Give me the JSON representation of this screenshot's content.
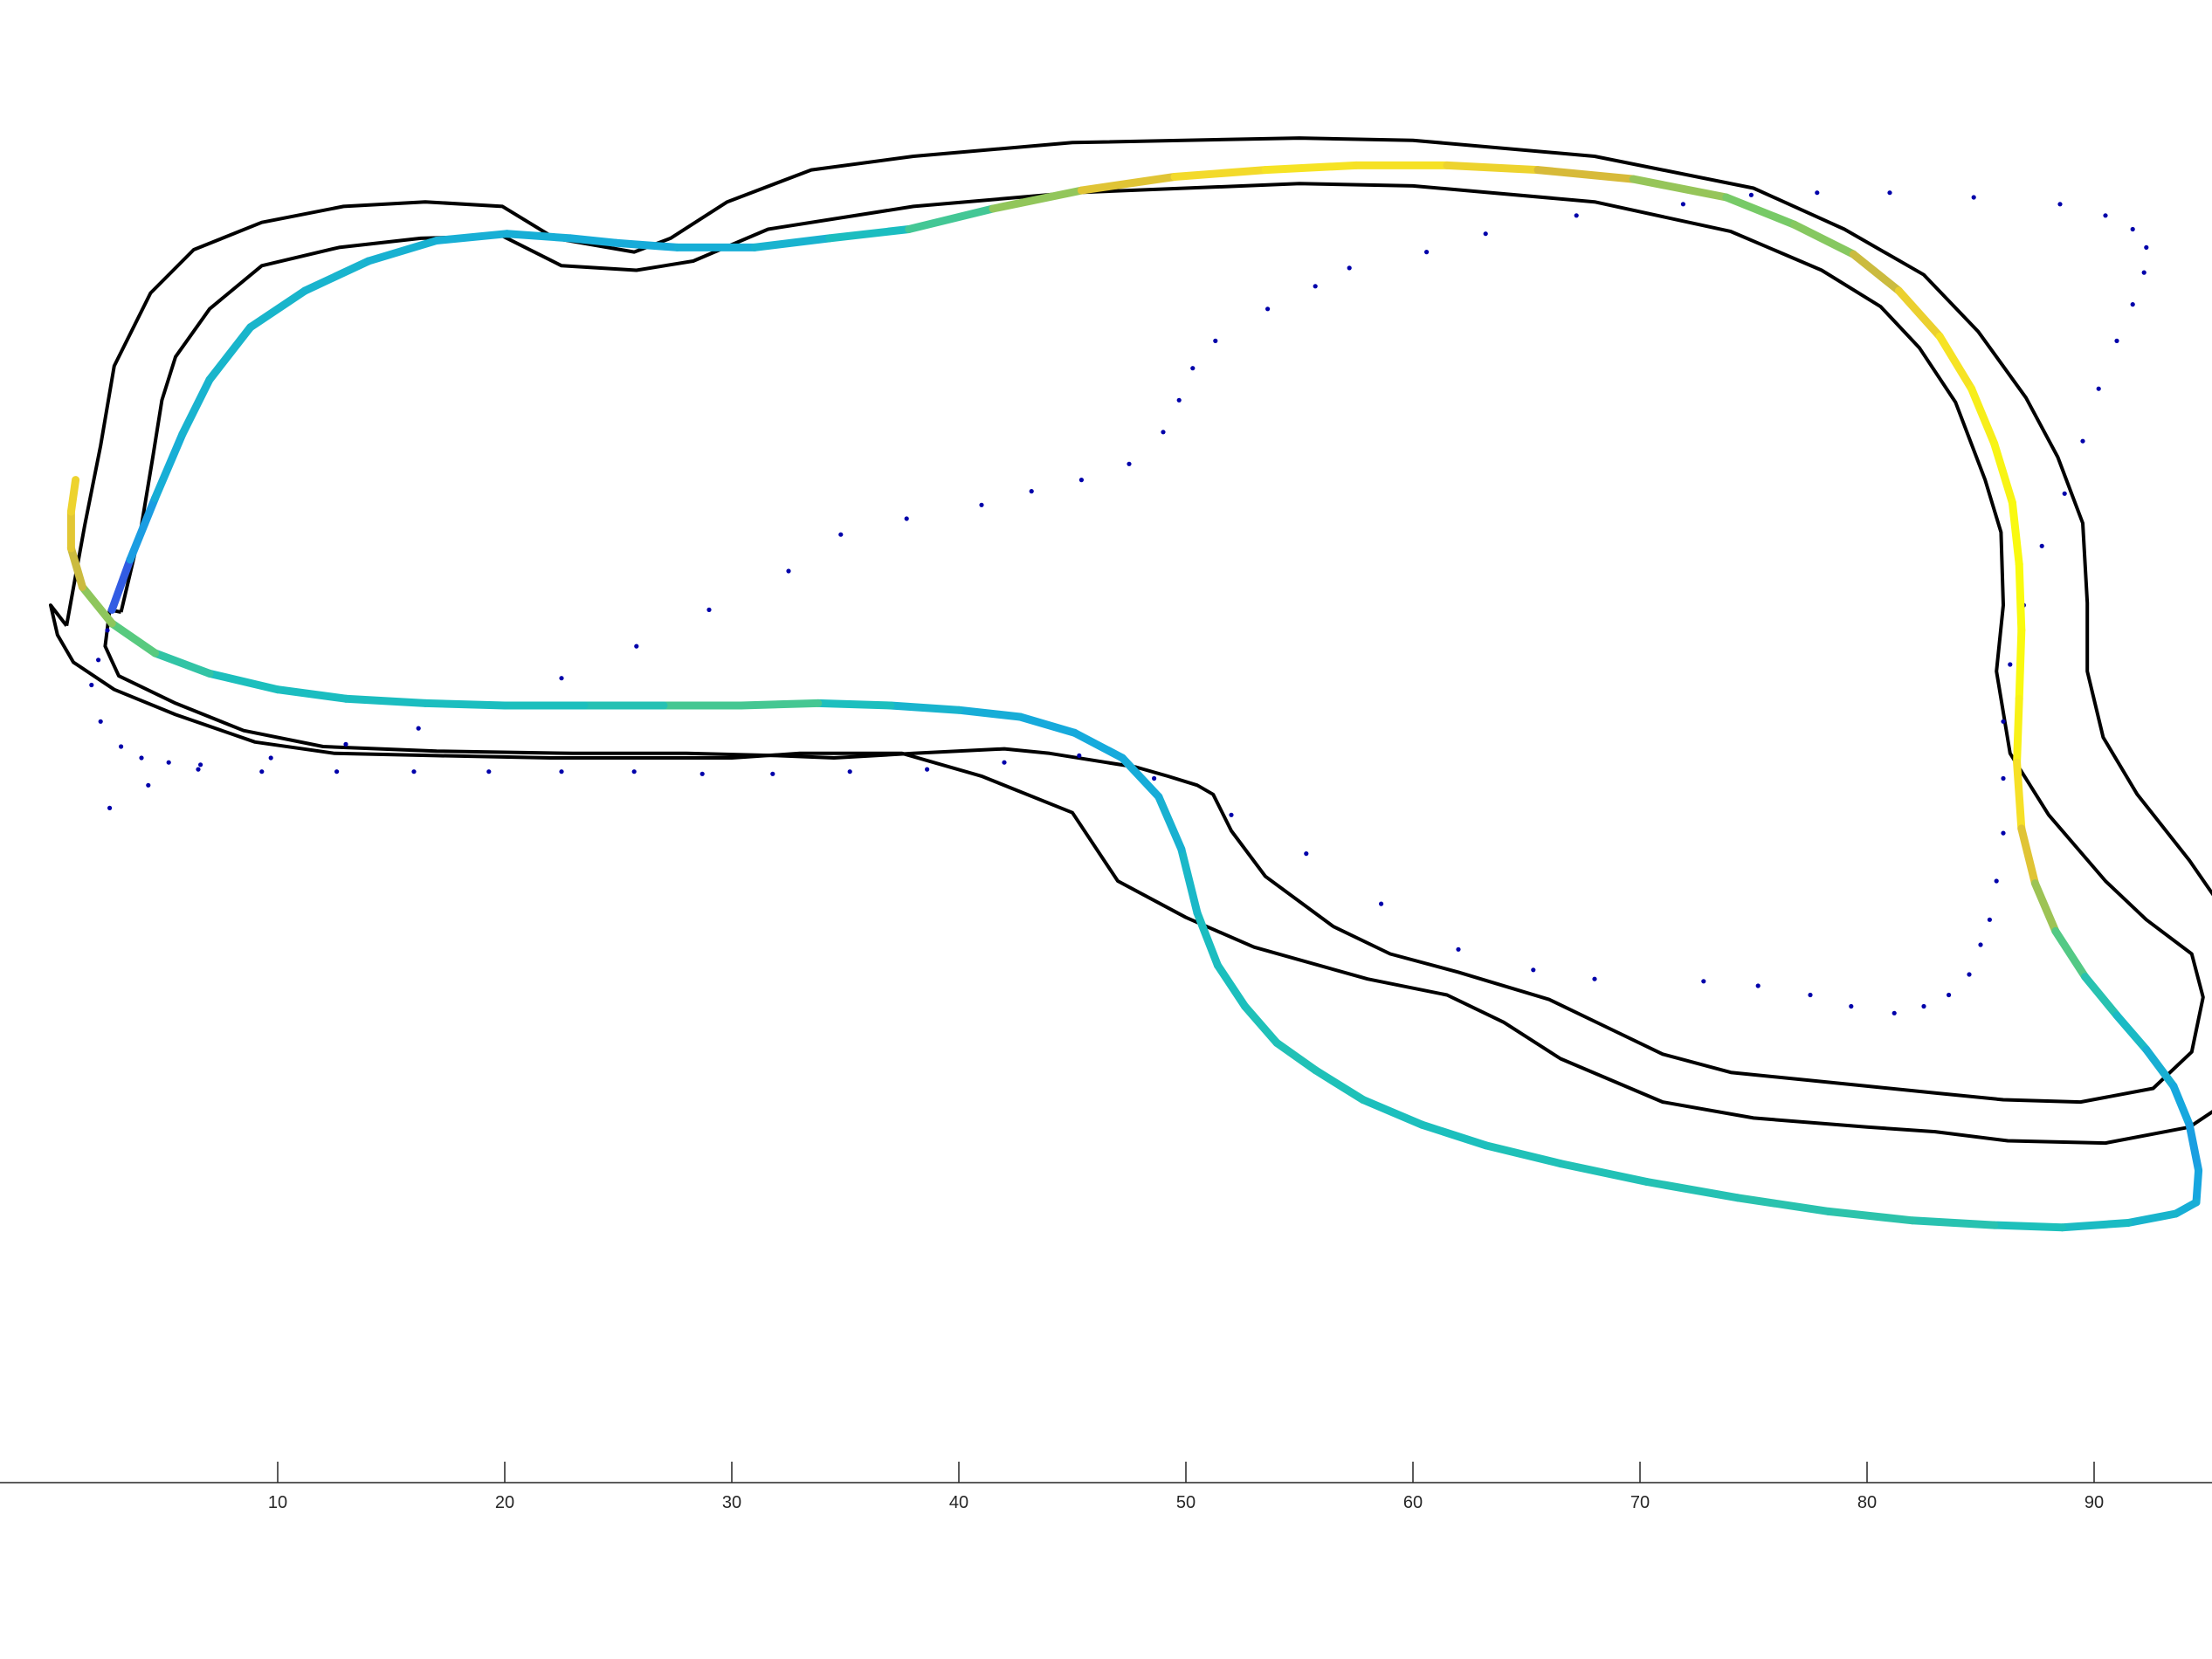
{
  "chart_data": {
    "type": "line",
    "title": "",
    "xlabel": "",
    "ylabel": "",
    "xlim": [
      0,
      100
    ],
    "ylim": [
      -10,
      63.5
    ],
    "grid": false,
    "legend": "none",
    "x_ticks": [
      10,
      20,
      30,
      40,
      50,
      60,
      70,
      80,
      90
    ],
    "x_tick_labels": [
      "10",
      "20",
      "30",
      "40",
      "50",
      "60",
      "70",
      "80",
      "90"
    ],
    "colors": {
      "boundary": "#000000",
      "waypoints": "#0000aa",
      "axis": "#262626",
      "racing_line_colormap": [
        "#3e26a8",
        "#2f6cf5",
        "#16a8de",
        "#1cc0bc",
        "#69cd6e",
        "#d6b93a",
        "#f5dc2a",
        "#f9fb0e"
      ]
    },
    "series": [
      {
        "role": "outer-boundary",
        "x": [
          0.7,
          1.5,
          2.2,
          2.8,
          4.4,
          6.3,
          9.3,
          12.9,
          16.5,
          19.9,
          22.2,
          25.7,
          27.3,
          29.8,
          33.5,
          38.0,
          45.0,
          55.0,
          60.0,
          68.0,
          75.0,
          79.0,
          82.5,
          84.9,
          87.0,
          88.4,
          89.5,
          89.7,
          89.7,
          90.4,
          91.9,
          94.2,
          95.1,
          96.3,
          97.3,
          97.2,
          96.3,
          94.2,
          90.5,
          86.2,
          83.0,
          80.0,
          75.0,
          71.0,
          66.5,
          64.0,
          61.5,
          58.0,
          53.0,
          50.0,
          47.0,
          45.0,
          41.0,
          37.5,
          35.0,
          33.0,
          30.0,
          25.0,
          22.0,
          17.0,
          12.5,
          9.0,
          5.5,
          2.8,
          1.0,
          0.3,
          0.0,
          0.7
        ],
        "y": [
          37.6,
          42.0,
          45.5,
          49.0,
          52.2,
          54.1,
          55.3,
          56.0,
          56.2,
          56.0,
          54.6,
          54.0,
          54.6,
          56.2,
          57.6,
          58.2,
          58.8,
          59.0,
          58.9,
          58.2,
          56.8,
          55.0,
          53.0,
          50.5,
          47.6,
          45.0,
          42.1,
          38.6,
          35.6,
          32.7,
          30.2,
          27.3,
          26.0,
          24.3,
          22.3,
          19.7,
          17.0,
          15.6,
          14.9,
          15.0,
          15.4,
          15.6,
          16.0,
          16.7,
          18.6,
          20.2,
          21.4,
          22.1,
          23.5,
          24.8,
          26.4,
          29.4,
          31.0,
          32.0,
          32.0,
          32.0,
          31.8,
          31.8,
          31.8,
          31.9,
          32.0,
          32.5,
          33.7,
          34.8,
          36.0,
          37.2,
          38.5,
          37.6
        ]
      },
      {
        "role": "inner-boundary",
        "x": [
          3.1,
          4.0,
          4.5,
          4.9,
          5.5,
          7.0,
          9.3,
          12.7,
          16.3,
          19.9,
          22.5,
          25.8,
          28.3,
          31.6,
          38.0,
          45.0,
          55.0,
          60.0,
          68.0,
          74.0,
          78.0,
          80.6,
          82.3,
          83.9,
          85.2,
          85.9,
          86.0,
          85.7,
          86.3,
          88.0,
          90.5,
          92.3,
          94.3,
          94.8,
          94.3,
          92.6,
          89.4,
          86.0,
          83.0,
          80.0,
          74.0,
          71.0,
          68.5,
          66.0,
          62.0,
          59.0,
          56.5,
          53.5,
          52.0,
          51.2,
          50.5,
          49.2,
          47.8,
          46.5,
          44.0,
          42.0,
          38.0,
          34.5,
          32.0,
          28.0,
          26.0,
          23.0,
          17.0,
          12.0,
          8.5,
          5.5,
          3.0,
          2.4,
          2.6,
          3.1
        ],
        "y": [
          38.2,
          42.0,
          45.0,
          47.5,
          49.4,
          51.5,
          53.4,
          54.2,
          54.6,
          54.7,
          53.4,
          53.2,
          53.6,
          55.0,
          56.0,
          56.6,
          57.0,
          56.9,
          56.2,
          54.9,
          53.2,
          51.6,
          49.8,
          47.4,
          44.0,
          41.7,
          38.5,
          35.6,
          32.0,
          29.3,
          26.4,
          24.7,
          23.2,
          21.3,
          18.9,
          17.3,
          16.7,
          16.8,
          17.1,
          17.4,
          18.0,
          18.8,
          20.0,
          21.2,
          22.4,
          23.2,
          24.4,
          26.6,
          28.6,
          30.2,
          30.6,
          31.0,
          31.4,
          31.6,
          32.0,
          32.2,
          32.0,
          31.8,
          31.9,
          32.0,
          32.0,
          32.0,
          32.1,
          32.3,
          33.0,
          34.2,
          35.4,
          36.7,
          38.3,
          38.2
        ]
      },
      {
        "role": "waypoints",
        "x": [
          2.5,
          2.1,
          1.8,
          2.2,
          3.1,
          4.0,
          5.2,
          6.6,
          9.3,
          12.6,
          16.0,
          19.3,
          22.5,
          25.7,
          28.7,
          31.8,
          35.2,
          38.6,
          42.0,
          45.3,
          48.6,
          52.0,
          55.3,
          58.6,
          62.0,
          65.3,
          68.0,
          72.8,
          75.2,
          77.5,
          79.3,
          81.2,
          82.5,
          83.6,
          84.5,
          85.0,
          85.4,
          85.7,
          86.0,
          86.0,
          86.0,
          86.3,
          86.9,
          87.7,
          88.7,
          89.5,
          90.2,
          91.0,
          91.7,
          92.2,
          92.3,
          91.7,
          90.5,
          88.5,
          84.7,
          81.0,
          77.8,
          74.9,
          71.9,
          67.2,
          63.2,
          60.6,
          57.2,
          55.7,
          53.6,
          51.3,
          50.3,
          49.7,
          49.0,
          47.5,
          45.4,
          43.2,
          41.0,
          37.7,
          34.8,
          32.5,
          29.0,
          25.8,
          22.5,
          19.4,
          16.2,
          13.0,
          9.7,
          6.5,
          4.3,
          2.6
        ],
        "y": [
          37.4,
          36.1,
          35.0,
          33.4,
          32.3,
          31.8,
          31.6,
          31.5,
          31.2,
          31.2,
          31.2,
          31.2,
          31.2,
          31.2,
          31.1,
          31.1,
          31.2,
          31.3,
          31.6,
          31.9,
          30.9,
          29.3,
          27.6,
          25.4,
          23.4,
          22.5,
          22.1,
          22.0,
          21.8,
          21.4,
          20.9,
          20.6,
          20.9,
          21.4,
          22.3,
          23.6,
          24.7,
          26.4,
          28.5,
          30.9,
          33.4,
          35.9,
          38.5,
          41.1,
          43.4,
          45.7,
          48.0,
          50.1,
          51.7,
          53.1,
          54.2,
          55.0,
          55.6,
          56.1,
          56.4,
          56.6,
          56.6,
          56.5,
          56.1,
          55.6,
          54.8,
          54.0,
          53.3,
          52.5,
          51.5,
          50.1,
          48.9,
          47.5,
          46.1,
          44.7,
          44.0,
          43.5,
          42.9,
          42.3,
          41.6,
          40.0,
          38.3,
          36.7,
          35.3,
          34.1,
          33.1,
          32.4,
          31.8,
          31.3,
          30.6,
          29.6
        ]
      },
      {
        "role": "racing-line",
        "x": [
          2.7,
          3.5,
          4.6,
          5.8,
          7.0,
          8.8,
          11.2,
          14.0,
          17.0,
          20.1,
          22.9,
          24.9,
          27.6,
          31.0,
          34.3,
          37.8,
          41.5,
          45.4,
          49.5,
          53.5,
          57.5,
          61.5,
          65.5,
          69.7,
          73.8,
          76.8,
          79.4,
          81.4,
          83.2,
          84.6,
          85.6,
          86.4,
          86.7,
          86.8,
          86.7,
          86.6,
          86.8,
          87.4,
          88.3,
          89.6,
          91.0,
          92.3,
          93.5,
          94.2,
          94.6,
          94.5,
          93.6,
          91.5,
          88.6,
          85.6,
          82.0,
          78.3,
          74.3,
          70.3,
          66.5,
          63.2,
          60.4,
          57.8,
          55.7,
          54.0,
          52.6,
          51.4,
          50.5,
          49.8,
          48.8,
          47.2,
          45.1,
          42.7,
          40.0,
          37.0,
          33.8,
          30.4,
          27.0,
          23.5,
          20.0,
          16.5,
          13.0,
          10.0,
          7.0,
          4.6,
          2.7,
          1.4,
          0.9,
          0.9,
          1.1
        ],
        "y": [
          38.3,
          40.5,
          43.2,
          46.0,
          48.4,
          50.7,
          52.3,
          53.6,
          54.5,
          54.8,
          54.6,
          54.4,
          54.2,
          54.2,
          54.6,
          55.0,
          55.9,
          56.7,
          57.3,
          57.6,
          57.8,
          57.8,
          57.6,
          57.2,
          56.4,
          55.2,
          53.9,
          52.3,
          50.3,
          48.0,
          45.6,
          43.0,
          40.3,
          37.4,
          34.4,
          31.6,
          28.7,
          26.3,
          24.2,
          22.2,
          20.5,
          19.0,
          17.4,
          15.7,
          13.7,
          12.3,
          11.8,
          11.4,
          11.2,
          11.3,
          11.5,
          11.9,
          12.5,
          13.2,
          14.0,
          14.8,
          15.7,
          16.8,
          18.1,
          19.3,
          20.9,
          22.7,
          25.0,
          27.8,
          30.1,
          31.8,
          32.9,
          33.6,
          33.9,
          34.1,
          34.2,
          34.1,
          34.1,
          34.1,
          34.1,
          34.2,
          34.4,
          34.8,
          35.5,
          36.4,
          37.7,
          39.3,
          41.0,
          42.6,
          44.0
        ],
        "speed": [
          0.0,
          0.22,
          0.3,
          0.34,
          0.36,
          0.37,
          0.36,
          0.35,
          0.33,
          0.32,
          0.32,
          0.3,
          0.31,
          0.33,
          0.37,
          0.45,
          0.55,
          0.7,
          0.82,
          0.88,
          0.9,
          0.86,
          0.78,
          0.66,
          0.6,
          0.58,
          0.64,
          0.76,
          0.86,
          0.92,
          0.96,
          0.98,
          1.0,
          1.0,
          0.98,
          0.93,
          0.82,
          0.7,
          0.58,
          0.48,
          0.42,
          0.36,
          0.3,
          0.27,
          0.26,
          0.3,
          0.34,
          0.38,
          0.42,
          0.44,
          0.46,
          0.46,
          0.45,
          0.44,
          0.44,
          0.43,
          0.42,
          0.43,
          0.44,
          0.44,
          0.43,
          0.42,
          0.4,
          0.36,
          0.32,
          0.3,
          0.29,
          0.3,
          0.33,
          0.38,
          0.46,
          0.55,
          0.46,
          0.43,
          0.42,
          0.41,
          0.41,
          0.41,
          0.44,
          0.5,
          0.58,
          0.66,
          0.74,
          0.8,
          0.84
        ]
      }
    ]
  }
}
